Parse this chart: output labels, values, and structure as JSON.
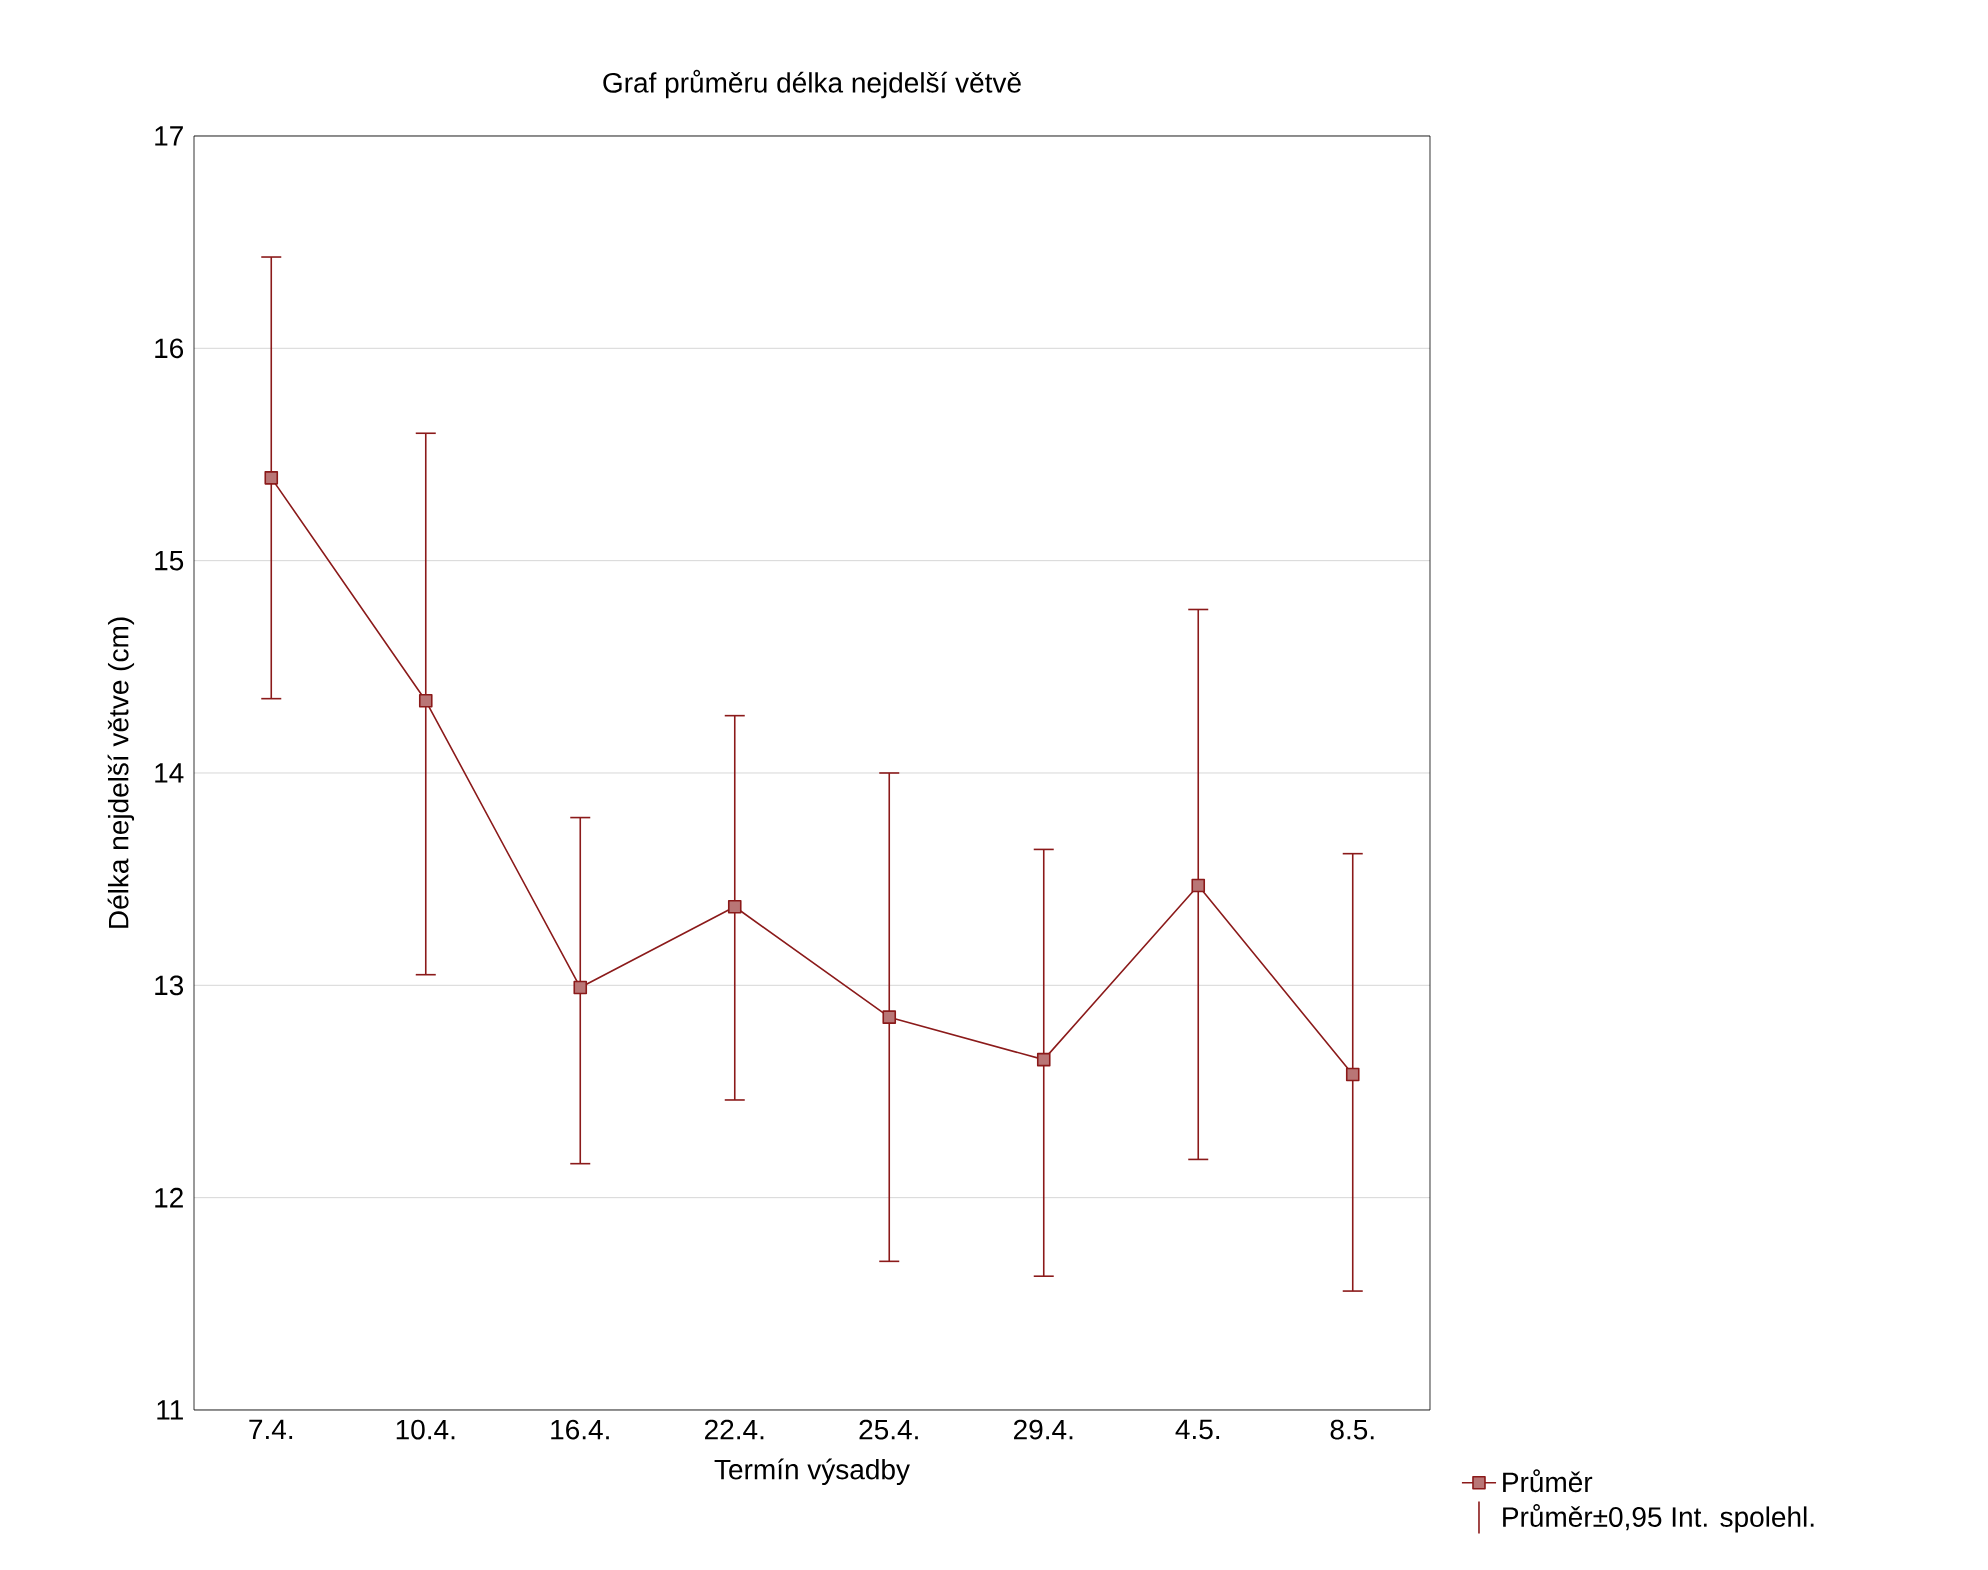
{
  "chart_data": {
    "type": "line",
    "title": "Graf průměru délka nejdelší větvě",
    "xlabel": "Termín výsadby",
    "ylabel": "Délka nejdelší větve (cm)",
    "categories": [
      "7.4.",
      "10.4.",
      "16.4.",
      "22.4.",
      "25.4.",
      "29.4.",
      "4.5.",
      "8.5."
    ],
    "series": [
      {
        "name": "Průměr",
        "color": "#8b1a1a",
        "values": [
          15.39,
          14.34,
          12.99,
          13.37,
          12.85,
          12.65,
          13.47,
          12.58
        ],
        "errors": [
          [
            14.35,
            16.43
          ],
          [
            13.05,
            15.6
          ],
          [
            12.16,
            13.79
          ],
          [
            12.46,
            14.27
          ],
          [
            11.7,
            14.0
          ],
          [
            11.63,
            13.64
          ],
          [
            12.18,
            14.77
          ],
          [
            11.56,
            13.62
          ]
        ]
      }
    ],
    "annotations": [
      "Průměr±0,95 Int. spolehl."
    ],
    "ylim": [
      11,
      17
    ],
    "yticks": [
      11,
      12,
      13,
      14,
      15,
      16,
      17
    ],
    "grid": "y",
    "legend": "bottom right",
    "marker": "square",
    "line_style": "solid"
  }
}
